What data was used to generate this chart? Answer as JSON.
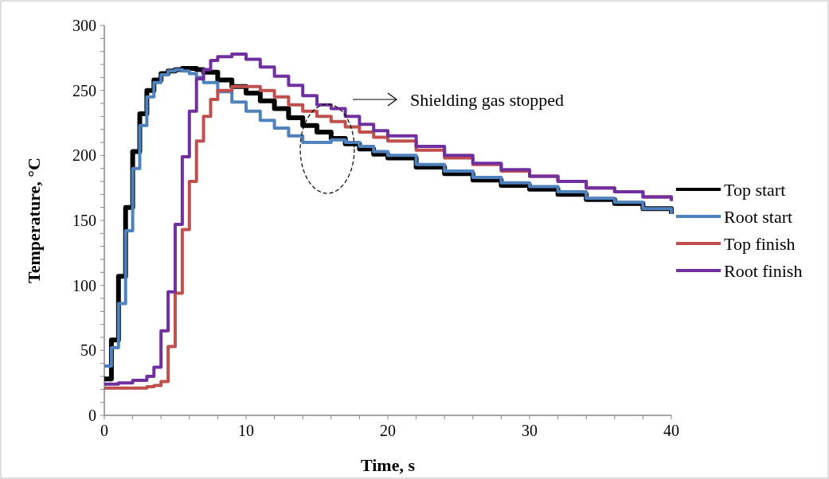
{
  "chart_data": {
    "type": "step",
    "xlabel": "Time, s",
    "ylabel": "Temperature, °C",
    "xlim": [
      0,
      40
    ],
    "ylim": [
      0,
      300
    ],
    "xticks": [
      0,
      {
        "value": 2,
        "label": null
      },
      {
        "value": 4,
        "label": null
      },
      {
        "value": 6,
        "label": null
      },
      {
        "value": 8,
        "label": null
      },
      10,
      {
        "value": 12,
        "label": null
      },
      {
        "value": 14,
        "label": null
      },
      {
        "value": 16,
        "label": null
      },
      {
        "value": 18,
        "label": null
      },
      20,
      {
        "value": 22,
        "label": null
      },
      {
        "value": 24,
        "label": null
      },
      {
        "value": 26,
        "label": null
      },
      {
        "value": 28,
        "label": null
      },
      30,
      {
        "value": 32,
        "label": null
      },
      {
        "value": 34,
        "label": null
      },
      {
        "value": 36,
        "label": null
      },
      {
        "value": 38,
        "label": null
      },
      40
    ],
    "yticks": [
      0,
      {
        "value": 10,
        "label": null
      },
      {
        "value": 20,
        "label": null
      },
      {
        "value": 30,
        "label": null
      },
      {
        "value": 40,
        "label": null
      },
      50,
      {
        "value": 60,
        "label": null
      },
      {
        "value": 70,
        "label": null
      },
      {
        "value": 80,
        "label": null
      },
      {
        "value": 90,
        "label": null
      },
      100,
      {
        "value": 110,
        "label": null
      },
      {
        "value": 120,
        "label": null
      },
      {
        "value": 130,
        "label": null
      },
      {
        "value": 140,
        "label": null
      },
      150,
      {
        "value": 160,
        "label": null
      },
      {
        "value": 170,
        "label": null
      },
      {
        "value": 180,
        "label": null
      },
      {
        "value": 190,
        "label": null
      },
      200,
      {
        "value": 210,
        "label": null
      },
      {
        "value": 220,
        "label": null
      },
      {
        "value": 230,
        "label": null
      },
      {
        "value": 240,
        "label": null
      },
      250,
      {
        "value": 260,
        "label": null
      },
      {
        "value": 270,
        "label": null
      },
      {
        "value": 280,
        "label": null
      },
      {
        "value": 290,
        "label": null
      },
      300
    ],
    "grid": false,
    "legend": "right",
    "marker": "none",
    "line_style": "solid",
    "annotations": [
      "Shielding gas stopped"
    ],
    "series": [
      {
        "name": "Top start",
        "color": "#000000",
        "x": [
          0,
          0.5,
          1,
          1.5,
          2,
          2.5,
          3,
          3.5,
          4,
          4.5,
          5,
          5.5,
          6,
          6.5,
          7,
          8,
          9,
          10,
          11,
          12,
          13,
          14,
          15,
          16,
          17,
          18,
          19,
          20,
          22,
          24,
          26,
          28,
          30,
          32,
          34,
          36,
          38,
          40
        ],
        "values": [
          28,
          58,
          107,
          160,
          203,
          232,
          250,
          258,
          263,
          265,
          266,
          267,
          267,
          266,
          264,
          258,
          253,
          248,
          242,
          236,
          229,
          223,
          218,
          213,
          209,
          205,
          201,
          198,
          191,
          186,
          181,
          177,
          174,
          170,
          166,
          163,
          159,
          155
        ]
      },
      {
        "name": "Root start",
        "color": "#4f81bd",
        "x": [
          0,
          0.5,
          1,
          1.5,
          2,
          2.5,
          3,
          3.5,
          4,
          4.5,
          5,
          5.5,
          6,
          6.5,
          7,
          8,
          9,
          10,
          11,
          12,
          13,
          14,
          15,
          16,
          17,
          18,
          19,
          20,
          22,
          24,
          26,
          28,
          30,
          32,
          34,
          36,
          38,
          40
        ],
        "values": [
          38,
          52,
          86,
          142,
          190,
          223,
          245,
          256,
          262,
          265,
          266,
          265,
          263,
          260,
          256,
          249,
          241,
          234,
          227,
          221,
          215,
          210,
          210,
          212,
          210,
          207,
          203,
          200,
          193,
          188,
          183,
          179,
          176,
          172,
          167,
          164,
          159,
          155
        ]
      },
      {
        "name": "Top finish",
        "color": "#c0504d",
        "x": [
          0,
          1,
          2,
          3,
          3.5,
          4,
          4.5,
          5,
          5.5,
          6,
          6.5,
          7,
          7.5,
          8,
          9,
          10,
          11,
          12,
          13,
          14,
          15,
          16,
          17,
          18,
          19,
          20,
          22,
          24,
          26,
          28,
          30,
          32,
          34,
          36,
          38,
          40
        ],
        "values": [
          21,
          21,
          21,
          22,
          23,
          26,
          53,
          94,
          143,
          180,
          211,
          230,
          243,
          250,
          253,
          253,
          250,
          245,
          239,
          234,
          230,
          226,
          222,
          218,
          214,
          211,
          204,
          198,
          193,
          188,
          184,
          180,
          175,
          172,
          168,
          165
        ]
      },
      {
        "name": "Root finish",
        "color": "#7030a0",
        "x": [
          0,
          1,
          2,
          3,
          3.5,
          4,
          4.5,
          5,
          5.5,
          6,
          6.5,
          7,
          7.5,
          8,
          9,
          10,
          11,
          12,
          13,
          14,
          15,
          16,
          17,
          18,
          19,
          20,
          22,
          24,
          26,
          28,
          30,
          32,
          34,
          36,
          38,
          40
        ],
        "values": [
          24,
          25,
          27,
          30,
          37,
          65,
          95,
          147,
          199,
          234,
          259,
          266,
          273,
          276,
          278,
          274,
          268,
          261,
          254,
          246,
          239,
          236,
          230,
          224,
          219,
          215,
          207,
          200,
          194,
          189,
          184,
          180,
          175,
          172,
          168,
          165
        ]
      }
    ]
  }
}
